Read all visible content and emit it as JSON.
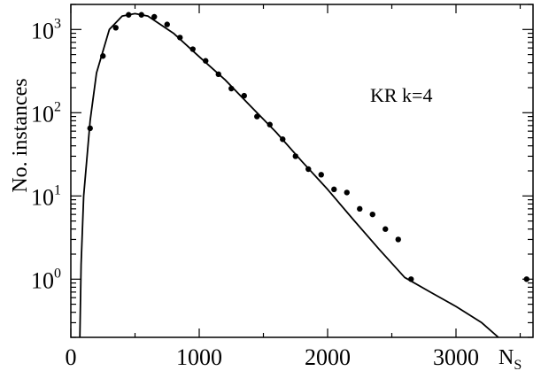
{
  "chart_data": {
    "type": "scatter",
    "title": "",
    "xlabel": "N",
    "xlabel_subscript": "S",
    "ylabel": "No. instances",
    "annotation": "KR k=4",
    "x_scale": "linear",
    "y_scale": "log",
    "xlim": [
      0,
      3600
    ],
    "ylim": [
      0.2,
      2000
    ],
    "x_ticks": [
      {
        "value": 0,
        "label": "0"
      },
      {
        "value": 1000,
        "label": "1000"
      },
      {
        "value": 2000,
        "label": "2000"
      },
      {
        "value": 3000,
        "label": "3000"
      }
    ],
    "y_ticks": [
      {
        "value": 1,
        "base": "10",
        "exp": "0"
      },
      {
        "value": 10,
        "base": "10",
        "exp": "1"
      },
      {
        "value": 100,
        "base": "10",
        "exp": "2"
      },
      {
        "value": 1000,
        "base": "10",
        "exp": "3"
      }
    ],
    "grid": false,
    "series": [
      {
        "kind": "points",
        "x": [
          150,
          250,
          350,
          450,
          550,
          650,
          750,
          850,
          950,
          1050,
          1150,
          1250,
          1350,
          1450,
          1550,
          1650,
          1750,
          1850,
          1950,
          2050,
          2150,
          2250,
          2350,
          2450,
          2550,
          2650,
          3550
        ],
        "y": [
          65,
          480,
          1050,
          1500,
          1500,
          1420,
          1150,
          800,
          580,
          420,
          290,
          195,
          160,
          90,
          72,
          48,
          30,
          21,
          18,
          12,
          11,
          7,
          6,
          4,
          3,
          1,
          1
        ]
      },
      {
        "kind": "curve",
        "x": [
          70,
          80,
          100,
          150,
          200,
          300,
          400,
          500,
          600,
          800,
          1000,
          1200,
          1400,
          1600,
          1800,
          2000,
          2200,
          2400,
          2600,
          2800,
          3000,
          3200,
          3330
        ],
        "y": [
          0.2,
          1.5,
          10,
          80,
          300,
          1000,
          1450,
          1550,
          1450,
          900,
          470,
          250,
          120,
          58,
          26,
          12,
          5.2,
          2.3,
          1.05,
          0.7,
          0.47,
          0.3,
          0.2
        ]
      }
    ]
  }
}
